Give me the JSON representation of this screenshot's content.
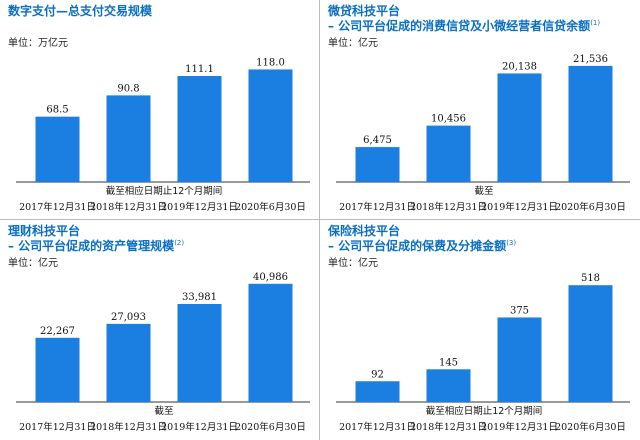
{
  "chart_data": [
    {
      "type": "bar",
      "title": "数字支付—总支付交易规模",
      "subtitle": "",
      "unit": "单位：万亿元",
      "period_label": "截至相应日期止12个月期间",
      "categories": [
        "2017年12月31日",
        "2018年12月31日",
        "2019年12月31日",
        "2020年6月30日"
      ],
      "values": [
        68.5,
        90.8,
        111.1,
        118.0
      ],
      "value_labels": [
        "68.5",
        "90.8",
        "111.1",
        "118.0"
      ],
      "ylim": [
        0,
        130
      ],
      "bar_color": "#1a7fe0",
      "legend": "none",
      "grid": false
    },
    {
      "type": "bar",
      "title": "微贷科技平台",
      "subtitle": "– 公司平台促成的消费信贷及小微经营者信贷余额",
      "note_mark": "(1)",
      "unit": "单位：亿元",
      "period_label": "截至",
      "categories": [
        "2017年12月31日",
        "2018年12月31日",
        "2019年12月31日",
        "2020年6月30日"
      ],
      "values": [
        6475,
        10456,
        20138,
        21536
      ],
      "value_labels": [
        "6,475",
        "10,456",
        "20,138",
        "21,536"
      ],
      "ylim": [
        0,
        23000
      ],
      "bar_color": "#1a7fe0",
      "legend": "none",
      "grid": false
    },
    {
      "type": "bar",
      "title": "理财科技平台",
      "subtitle": "– 公司平台促成的资产管理规模",
      "note_mark": "(2)",
      "unit": "单位：亿元",
      "period_label": "截至",
      "categories": [
        "2017年12月31日",
        "2018年12月31日",
        "2019年12月31日",
        "2020年6月30日"
      ],
      "values": [
        22267,
        27093,
        33981,
        40986
      ],
      "value_labels": [
        "22,267",
        "27,093",
        "33,981",
        "40,986"
      ],
      "ylim": [
        0,
        43000
      ],
      "bar_color": "#1a7fe0",
      "legend": "none",
      "grid": false
    },
    {
      "type": "bar",
      "title": "保险科技平台",
      "subtitle": "– 公司平台促成的保费及分摊金额",
      "note_mark": "(3)",
      "unit": "单位：亿元",
      "period_label": "截至相应日期止12个月期间",
      "categories": [
        "2017年12月31日",
        "2018年12月31日",
        "2019年12月31日",
        "2020年6月30日"
      ],
      "values": [
        92,
        145,
        375,
        518
      ],
      "value_labels": [
        "92",
        "145",
        "375",
        "518"
      ],
      "ylim": [
        0,
        550
      ],
      "bar_color": "#1a7fe0",
      "legend": "none",
      "grid": false
    }
  ]
}
